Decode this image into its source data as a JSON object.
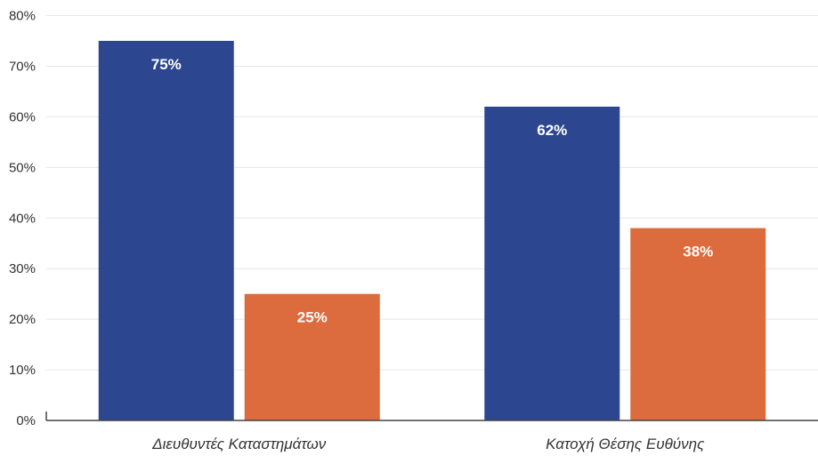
{
  "chart_data": {
    "type": "bar",
    "categories": [
      "Διευθυντές Καταστημάτων",
      "Κατοχή Θέσης Ευθύνης"
    ],
    "series": [
      {
        "values": [
          75,
          62
        ],
        "color": "#2c4690",
        "value_labels": [
          "75%",
          "62%"
        ]
      },
      {
        "values": [
          25,
          38
        ],
        "color": "#dc6b3d",
        "value_labels": [
          "25%",
          "38%"
        ]
      }
    ],
    "ylim": [
      0,
      80
    ],
    "yticks": [
      0,
      10,
      20,
      30,
      40,
      50,
      60,
      70,
      80
    ],
    "ytick_labels": [
      "0%",
      "10%",
      "20%",
      "30%",
      "40%",
      "50%",
      "60%",
      "70%",
      "80%"
    ],
    "grid": true,
    "legend": "none"
  }
}
